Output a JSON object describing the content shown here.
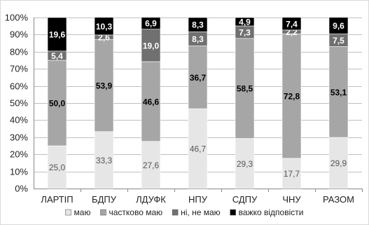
{
  "chart_data": {
    "type": "bar",
    "stacked": true,
    "categories": [
      "ЛАРТІП",
      "БДПУ",
      "ЛДУФК",
      "НПУ",
      "СДПУ",
      "ЧНУ",
      "РАЗОМ"
    ],
    "series": [
      {
        "name": "маю",
        "values": [
          25.0,
          33.3,
          27.6,
          46.7,
          29.3,
          17.7,
          29.9
        ],
        "labels": [
          "25,0",
          "33,3",
          "27,6",
          "46,7",
          "29,3",
          "17,7",
          "29,9"
        ],
        "color": "#e6e6e6",
        "label_color": "#555555",
        "label_bold": false
      },
      {
        "name": "частково маю",
        "values": [
          50.0,
          53.9,
          46.6,
          36.7,
          58.5,
          72.8,
          53.1
        ],
        "labels": [
          "50,0",
          "53,9",
          "46,6",
          "36,7",
          "58,5",
          "72,8",
          "53,1"
        ],
        "color": "#a6a6a6",
        "label_color": "#000000",
        "label_bold": true
      },
      {
        "name": "ні, не маю",
        "values": [
          5.4,
          2.6,
          19.0,
          8.3,
          7.3,
          2.2,
          7.5
        ],
        "labels": [
          "5,4",
          "2,6",
          "19,0",
          "8,3",
          "7,3",
          "2,2",
          "7,5"
        ],
        "color": "#707070",
        "label_color": "#ffffff",
        "label_bold": true
      },
      {
        "name": "важко відповісти",
        "values": [
          19.6,
          10.3,
          6.9,
          8.3,
          4.9,
          7.4,
          9.6
        ],
        "labels": [
          "19,6",
          "10,3",
          "6,9",
          "8,3",
          "4,9",
          "7,4",
          "9,6"
        ],
        "color": "#000000",
        "label_color": "#ffffff",
        "label_bold": true
      }
    ],
    "y_ticks": [
      "0%",
      "10%",
      "20%",
      "30%",
      "40%",
      "50%",
      "60%",
      "70%",
      "80%",
      "90%",
      "100%"
    ],
    "ylim": [
      0,
      100
    ],
    "grid": true,
    "legend": "bottom",
    "title": "",
    "xlabel": "",
    "ylabel": ""
  }
}
